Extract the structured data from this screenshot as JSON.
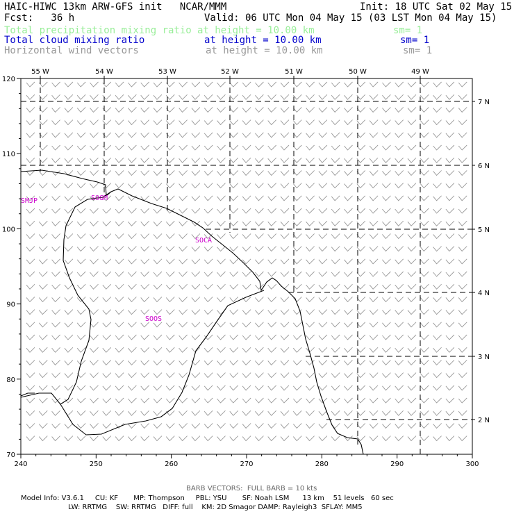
{
  "header": {
    "line1_left": "HAIC-HIWC 13km ARW-GFS init   NCAR/MMM",
    "line1_right": "Init: 18 UTC Sat 02 May 15",
    "line2_left": "Fcst:   36 h",
    "line2_right": "Valid: 06 UTC Mon 04 May 15 (03 LST Mon 04 May 15)",
    "fields": [
      {
        "name": "Total precipitation mixing ratio",
        "height": "at height = 10.00 km",
        "sm": "sm= 1",
        "color": "#99ee99"
      },
      {
        "name": "Total cloud mixing ratio",
        "height": "at height = 10.00 km",
        "sm": "sm= 1",
        "color": "#0000cc"
      },
      {
        "name": "Horizontal wind vectors",
        "height": "at height = 10.00 km",
        "sm": "sm= 1",
        "color": "#999999"
      }
    ]
  },
  "map": {
    "x_ticks": [
      "240",
      "250",
      "260",
      "270",
      "280",
      "290",
      "300"
    ],
    "y_ticks": [
      "70",
      "80",
      "90",
      "100",
      "110",
      "120"
    ],
    "lon_labels": [
      "55 W",
      "54 W",
      "53 W",
      "52 W",
      "51 W",
      "50 W",
      "49 W"
    ],
    "lat_labels": [
      "7 N",
      "6 N",
      "5 N",
      "4 N",
      "3 N",
      "2 N"
    ],
    "stations": [
      "SMJP",
      "SOGM",
      "SOCA",
      "SOOS"
    ],
    "barb_color": "#999999",
    "station_color": "#cc00cc"
  },
  "footer": {
    "barb_note": "BARB VECTORS:  FULL BARB = 10 kts",
    "line1": "Model Info: V3.6.1     CU: KF       MP: Thompson     PBL: YSU       SF: Noah LSM      13 km    51 levels   60 sec",
    "line2": "LW: RRTMG    SW: RRTMG   DIFF: full    KM: 2D Smagor DAMP: Rayleigh3  SFLAY: MM5"
  }
}
